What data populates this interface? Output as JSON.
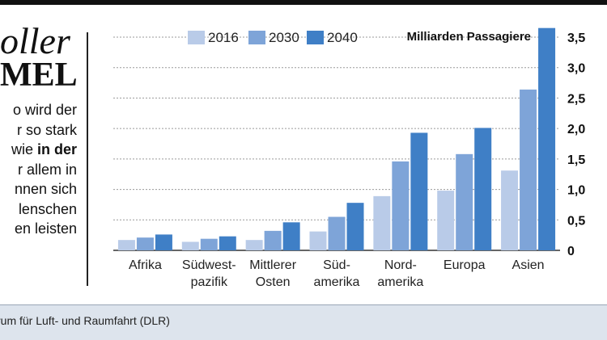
{
  "headline": {
    "line1": "oller",
    "line2": "MEL"
  },
  "body_lines": [
    [
      "o wird der",
      ""
    ],
    [
      "r so stark",
      ""
    ],
    [
      "wie ",
      "in der"
    ],
    [
      "r allem in",
      ""
    ],
    [
      "nnen sich",
      ""
    ],
    [
      "lenschen",
      ""
    ],
    [
      "en leisten",
      ""
    ]
  ],
  "source": "rum für Luft- und Raumfahrt (DLR)",
  "colors": {
    "s2016": "#b9cbe8",
    "s2030": "#7ea4d8",
    "s2040": "#3f7fc6",
    "grid": "#9a9a9a",
    "footer": "#dde4ed"
  },
  "chart_data": {
    "type": "bar",
    "ylabel": "Milliarden Passagiere",
    "ylim": [
      0,
      3.5
    ],
    "yticks": [
      "0",
      "0,5",
      "1,0",
      "1,5",
      "2,0",
      "2,5",
      "3,0",
      "3,5"
    ],
    "ytick_values": [
      0,
      0.5,
      1.0,
      1.5,
      2.0,
      2.5,
      3.0,
      3.5
    ],
    "grid": true,
    "legend_position": "top",
    "categories": [
      [
        "Afrika"
      ],
      [
        "Südwest-",
        "pazifik"
      ],
      [
        "Mittlerer",
        "Osten"
      ],
      [
        "Süd-",
        "amerika"
      ],
      [
        "Nord-",
        "amerika"
      ],
      [
        "Europa"
      ],
      [
        "Asien"
      ]
    ],
    "series": [
      {
        "name": "2016",
        "values": [
          0.17,
          0.14,
          0.17,
          0.31,
          0.89,
          0.98,
          1.31
        ]
      },
      {
        "name": "2030",
        "values": [
          0.21,
          0.19,
          0.32,
          0.55,
          1.46,
          1.58,
          2.64
        ]
      },
      {
        "name": "2040",
        "values": [
          0.26,
          0.23,
          0.46,
          0.78,
          1.93,
          2.01,
          3.65
        ]
      }
    ]
  }
}
